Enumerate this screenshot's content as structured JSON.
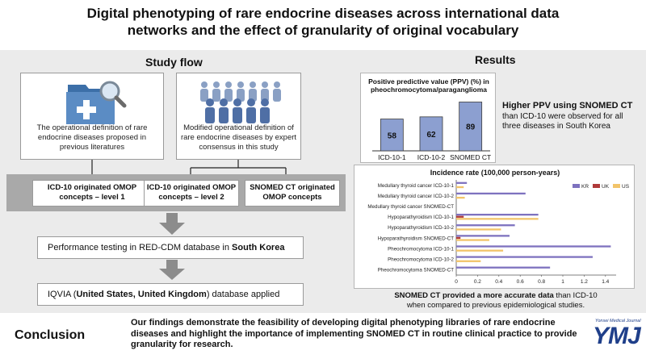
{
  "title": {
    "line1": "Digital phenotyping of rare endocrine diseases across international data",
    "line2": "networks and the effect of granularity of original vocabulary"
  },
  "study_flow": {
    "heading": "Study flow",
    "definition_left": "The operational definition of rare endocrine diseases proposed in previous literatures",
    "definition_right": "Modified operational definition of rare endocrine diseases by expert consensus in this study",
    "concept1": "ICD-10 originated OMOP concepts – level 1",
    "concept2": "ICD-10 originated OMOP concepts – level 2",
    "concept3": "SNOMED CT originated OMOP concepts",
    "testing_prefix": "Performance testing in RED-CDM database in ",
    "testing_bold": "South Korea",
    "iqvia_prefix": "IQVIA (",
    "iqvia_bold": "United States, United Kingdom",
    "iqvia_suffix": ") database applied"
  },
  "results": {
    "heading": "Results",
    "ppv_note_bold": "Higher PPV using SNOMED CT",
    "ppv_note_rest": "than ICD-10 were observed for all three diseases in South Korea",
    "incidence_note_bold": "SNOMED CT provided a more accurate data",
    "incidence_note_rest1": " than ICD-10",
    "incidence_note_rest2": "when compared to previous epidemiological studies."
  },
  "chart_data": [
    {
      "type": "bar",
      "title": "Positive predictive value (PPV) (%) in pheochromocytoma/paraganglioma",
      "categories": [
        "ICD-10-1",
        "ICD-10-2",
        "SNOMED CT"
      ],
      "values": [
        58,
        62,
        89
      ],
      "ylim": [
        0,
        100
      ],
      "xlabel": "",
      "ylabel": "",
      "colors": {
        "bar": "#8c9fd0",
        "edge": "#3c3c3c"
      }
    },
    {
      "type": "bar",
      "orientation": "horizontal",
      "title": "Incidence rate (100,000 person-years)",
      "categories": [
        "Medullary thyroid cancer ICD-10-1",
        "Medullary thyroid cancer ICD-10-2",
        "Medullary thyroid cancer SNOMED-CT",
        "Hypoparathyroidism ICD-10-1",
        "Hypoparathyroidism ICD-10-2",
        "Hypoparathyroidism SNOMED-CT",
        "Pheochromocytoma ICD-10-1",
        "Pheochromocytoma ICD-10-2",
        "Pheochromocytoma SNOMED-CT"
      ],
      "series": [
        {
          "name": "KR",
          "color": "#7e72bf",
          "values": [
            0.1,
            0.65,
            0.0,
            0.77,
            0.55,
            0.5,
            1.45,
            1.28,
            0.88
          ]
        },
        {
          "name": "UK",
          "color": "#b03a3a",
          "values": [
            0.0,
            0.0,
            0.0,
            0.07,
            0.0,
            0.04,
            0.0,
            0.0,
            0.0
          ]
        },
        {
          "name": "US",
          "color": "#f2c46a",
          "values": [
            0.07,
            0.08,
            0.0,
            0.77,
            0.42,
            0.31,
            0.44,
            0.23,
            0.0
          ]
        }
      ],
      "xlim": [
        0,
        1.5
      ],
      "xticks": [
        "0",
        "0.2",
        "0.4",
        "0.6",
        "0.8",
        "1",
        "1.2",
        "1.4"
      ],
      "legend": "top-right"
    }
  ],
  "conclusion": {
    "label": "Conclusion",
    "text": "Our findings demonstrate the feasibility of developing digital phenotyping libraries of rare endocrine diseases and highlight the importance of implementing SNOMED CT in routine clinical practice to provide granularity for research."
  },
  "journal": {
    "small": "Yonsei Medical Journal",
    "logo": "YMJ"
  }
}
